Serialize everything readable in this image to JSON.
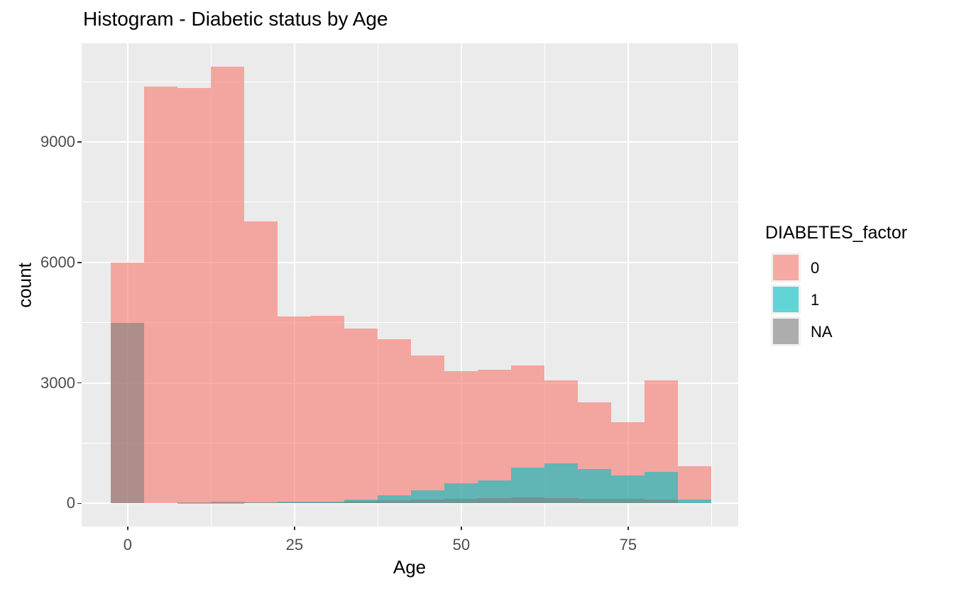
{
  "title": "Histogram - Diabetic status by Age",
  "axes": {
    "x": {
      "label": "Age",
      "tick_labels": [
        "0",
        "25",
        "50",
        "75"
      ]
    },
    "y": {
      "label": "count",
      "tick_labels": [
        "0",
        "3000",
        "6000",
        "9000"
      ]
    }
  },
  "legend": {
    "title": "DIABETES_factor",
    "entries": [
      {
        "label": "0",
        "swatch": "rgba(248,118,109,0.6)"
      },
      {
        "label": "1",
        "swatch": "rgba(0,191,196,0.6)"
      },
      {
        "label": "NA",
        "swatch": "rgba(127,127,127,0.6)"
      }
    ]
  },
  "palette": {
    "panel_bg": "#EBEBEB",
    "grid": "#FFFFFF",
    "tick_mark": "#333333",
    "tick_label": "#4D4D4D",
    "legend_key_bg": "#F2F2F2"
  },
  "chart_data": {
    "type": "bar",
    "subtype": "histogram-overlaid-identity",
    "title": "Histogram - Diabetic status by Age",
    "xlabel": "Age",
    "ylabel": "count",
    "binwidth": 5,
    "bin_centers": [
      0,
      5,
      10,
      15,
      20,
      25,
      30,
      35,
      40,
      45,
      50,
      55,
      60,
      65,
      70,
      75,
      80,
      85
    ],
    "series": [
      {
        "name": "0",
        "fill": "rgba(248,118,109,0.6)",
        "values": [
          6000,
          10380,
          10340,
          10880,
          7020,
          4650,
          4670,
          4350,
          4080,
          3690,
          3300,
          3330,
          3440,
          3060,
          2520,
          2030,
          3060,
          930
        ]
      },
      {
        "name": "1",
        "fill": "rgba(0,191,196,0.6)",
        "values": [
          0,
          0,
          10,
          15,
          25,
          35,
          50,
          105,
          205,
          330,
          500,
          575,
          900,
          1000,
          850,
          690,
          780,
          95
        ]
      },
      {
        "name": "NA",
        "fill": "rgba(127,127,127,0.6)",
        "values": [
          4500,
          0,
          30,
          40,
          30,
          25,
          30,
          60,
          75,
          90,
          110,
          130,
          150,
          140,
          120,
          110,
          100,
          0
        ]
      }
    ],
    "xlim": [
      -6.9,
      91.5
    ],
    "ylim": [
      -575,
      11455
    ],
    "x_major_ticks": [
      0,
      25,
      50,
      75
    ],
    "x_minor_gridlines": [
      12.5,
      37.5,
      62.5,
      87.5
    ],
    "y_major_ticks": [
      0,
      3000,
      6000,
      9000
    ],
    "y_minor_gridlines": [
      1500,
      4500,
      7500,
      10500
    ],
    "grid": true,
    "legend_position": "right"
  }
}
